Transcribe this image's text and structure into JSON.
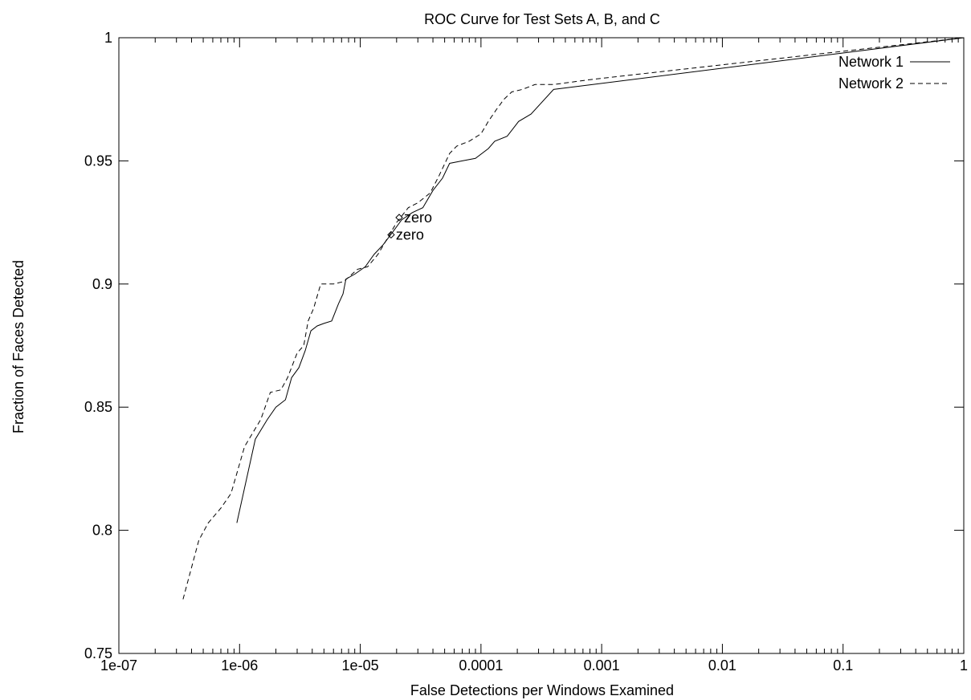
{
  "chart_data": {
    "type": "line",
    "title": "ROC Curve for Test Sets A, B, and C",
    "xlabel": "False Detections per Windows Examined",
    "ylabel": "Fraction of Faces Detected",
    "xscale": "log",
    "xlim": [
      1e-07,
      1
    ],
    "ylim": [
      0.75,
      1
    ],
    "grid": false,
    "legend_position": "top-right",
    "xticks": [
      {
        "value": 1e-07,
        "label": "1e-07"
      },
      {
        "value": 1e-06,
        "label": "1e-06"
      },
      {
        "value": 1e-05,
        "label": "1e-05"
      },
      {
        "value": 0.0001,
        "label": "0.0001"
      },
      {
        "value": 0.001,
        "label": "0.001"
      },
      {
        "value": 0.01,
        "label": "0.01"
      },
      {
        "value": 0.1,
        "label": "0.1"
      },
      {
        "value": 1,
        "label": "1"
      }
    ],
    "yticks": [
      {
        "value": 0.75,
        "label": "0.75"
      },
      {
        "value": 0.8,
        "label": "0.8"
      },
      {
        "value": 0.85,
        "label": "0.85"
      },
      {
        "value": 0.9,
        "label": "0.9"
      },
      {
        "value": 0.95,
        "label": "0.95"
      },
      {
        "value": 1,
        "label": "1"
      }
    ],
    "series": [
      {
        "name": "Network 1",
        "style": "solid",
        "points": [
          [
            9.5e-07,
            0.803
          ],
          [
            1.35e-06,
            0.837
          ],
          [
            1.7e-06,
            0.845
          ],
          [
            2e-06,
            0.85
          ],
          [
            2.4e-06,
            0.853
          ],
          [
            2.7e-06,
            0.862
          ],
          [
            3.1e-06,
            0.866
          ],
          [
            3.5e-06,
            0.873
          ],
          [
            3.9e-06,
            0.881
          ],
          [
            4.4e-06,
            0.883
          ],
          [
            5e-06,
            0.884
          ],
          [
            5.8e-06,
            0.885
          ],
          [
            6.6e-06,
            0.892
          ],
          [
            7.2e-06,
            0.896
          ],
          [
            7.6e-06,
            0.902
          ],
          [
            9e-06,
            0.904
          ],
          [
            1.1e-05,
            0.907
          ],
          [
            1.3e-05,
            0.912
          ],
          [
            1.55e-05,
            0.916
          ],
          [
            1.85e-05,
            0.921
          ],
          [
            2.2e-05,
            0.926
          ],
          [
            2.7e-05,
            0.929
          ],
          [
            3.3e-05,
            0.931
          ],
          [
            4e-05,
            0.938
          ],
          [
            4.8e-05,
            0.943
          ],
          [
            5.5e-05,
            0.949
          ],
          [
            7e-05,
            0.95
          ],
          [
            9e-05,
            0.951
          ],
          [
            0.000115,
            0.955
          ],
          [
            0.00013,
            0.958
          ],
          [
            0.000165,
            0.96
          ],
          [
            0.000205,
            0.966
          ],
          [
            0.00026,
            0.969
          ],
          [
            0.0004,
            0.979
          ],
          [
            1.0,
            1.0
          ]
        ]
      },
      {
        "name": "Network 2",
        "style": "dashed",
        "points": [
          [
            3.4e-07,
            0.772
          ],
          [
            4.6e-07,
            0.796
          ],
          [
            5.5e-07,
            0.803
          ],
          [
            7e-07,
            0.809
          ],
          [
            8.5e-07,
            0.815
          ],
          [
            1.1e-06,
            0.834
          ],
          [
            1.5e-06,
            0.845
          ],
          [
            1.8e-06,
            0.856
          ],
          [
            2.2e-06,
            0.857
          ],
          [
            2.5e-06,
            0.862
          ],
          [
            3e-06,
            0.872
          ],
          [
            3.4e-06,
            0.875
          ],
          [
            3.7e-06,
            0.885
          ],
          [
            4.1e-06,
            0.89
          ],
          [
            4.7e-06,
            0.9
          ],
          [
            6e-06,
            0.9
          ],
          [
            7.3e-06,
            0.901
          ],
          [
            9.5e-06,
            0.906
          ],
          [
            1.15e-05,
            0.907
          ],
          [
            1.4e-05,
            0.912
          ],
          [
            1.7e-05,
            0.919
          ],
          [
            2e-05,
            0.925
          ],
          [
            2.5e-05,
            0.931
          ],
          [
            3e-05,
            0.933
          ],
          [
            3.8e-05,
            0.937
          ],
          [
            4.5e-05,
            0.944
          ],
          [
            5.5e-05,
            0.953
          ],
          [
            6.3e-05,
            0.956
          ],
          [
            8e-05,
            0.958
          ],
          [
            0.0001,
            0.961
          ],
          [
            0.000115,
            0.966
          ],
          [
            0.000135,
            0.971
          ],
          [
            0.000155,
            0.975
          ],
          [
            0.00018,
            0.978
          ],
          [
            0.00022,
            0.979
          ],
          [
            0.00028,
            0.981
          ],
          [
            0.0004,
            0.981
          ],
          [
            0.0008,
            0.983
          ],
          [
            1.0,
            1.0
          ]
        ]
      }
    ],
    "annotations": [
      {
        "text": "zero",
        "x": 2.1e-05,
        "y": 0.927,
        "marker": "diamond"
      },
      {
        "text": "zero",
        "x": 1.8e-05,
        "y": 0.92,
        "marker": "diamond"
      }
    ]
  }
}
